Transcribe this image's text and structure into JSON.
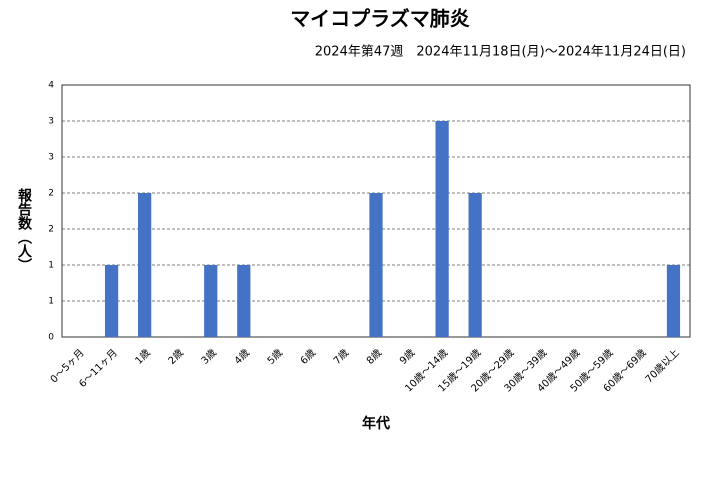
{
  "chart_data": {
    "type": "bar",
    "title": "マイコプラズマ肺炎",
    "subtitle": "2024年第47週　2024年11月18日(月)～2024年11月24日(日)",
    "y_label": "報告数（人）",
    "x_label": "年代",
    "categories": [
      "0～5ヶ月",
      "6～11ヶ月",
      "1歳",
      "2歳",
      "3歳",
      "4歳",
      "5歳",
      "6歳",
      "7歳",
      "8歳",
      "9歳",
      "10歳～14歳",
      "15歳～19歳",
      "20歳～29歳",
      "30歳～39歳",
      "40歳～49歳",
      "50歳～59歳",
      "60歳～69歳",
      "70歳以上"
    ],
    "values": [
      0,
      1,
      2,
      0,
      1,
      1,
      0,
      0,
      0,
      2,
      0,
      3,
      2,
      0,
      0,
      0,
      0,
      0,
      1
    ],
    "color": "#4472c4",
    "ylim": [
      0,
      3.5
    ],
    "yticks": [
      0,
      {
        "value": 0.5,
        "label": "1"
      },
      1,
      {
        "value": 1.5,
        "label": "2"
      },
      2,
      {
        "value": 2.5,
        "label": "3"
      },
      3,
      {
        "value": 3.5,
        "label": "4"
      }
    ],
    "grid": true
  }
}
